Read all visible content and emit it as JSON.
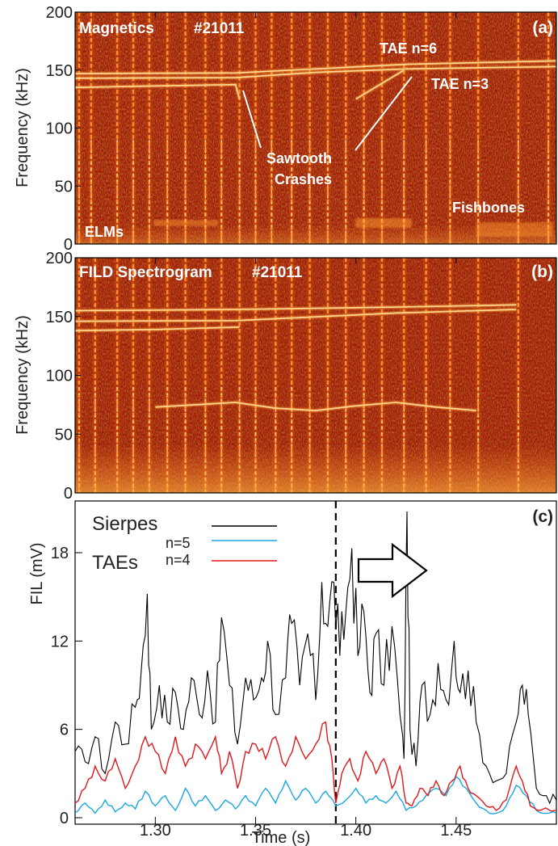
{
  "colors": {
    "spec_bg": "#a01a06",
    "spec_dark": "#6e0c02",
    "spec_mid": "#d2480f",
    "spec_bright": "#ff9b33",
    "spec_hot": "#ffe0a0",
    "sierpes": "#000000",
    "tae_n5": "#1aa7e0",
    "tae_n4": "#e0181c"
  },
  "chart_data": [
    {
      "type": "heatmap",
      "panel_label": "(a)",
      "title": "Magnetics",
      "shot": "#21011",
      "ylabel": "Frequency (kHz)",
      "ylim": [
        0,
        200
      ],
      "yticks": [
        0,
        50,
        100,
        150,
        200
      ],
      "xlim": [
        1.26,
        1.5
      ],
      "elm_times": [
        1.262,
        1.268,
        1.281,
        1.289,
        1.297,
        1.306,
        1.315,
        1.325,
        1.333,
        1.342,
        1.35,
        1.358,
        1.368,
        1.377,
        1.386,
        1.395,
        1.404,
        1.413,
        1.424,
        1.435,
        1.447,
        1.461,
        1.481,
        1.496
      ],
      "modes": [
        {
          "name": "TAE n=6",
          "points": [
            [
              1.26,
              147
            ],
            [
              1.34,
              147.5
            ],
            [
              1.38,
              151
            ],
            [
              1.425,
              155
            ],
            [
              1.5,
              158
            ]
          ]
        },
        {
          "name": "TAE n=3",
          "points": [
            [
              1.26,
              143
            ],
            [
              1.34,
              143.5
            ],
            [
              1.38,
              148
            ],
            [
              1.425,
              151
            ],
            [
              1.5,
              153
            ]
          ]
        },
        {
          "name": "",
          "points": [
            [
              1.26,
              135
            ],
            [
              1.29,
              136
            ],
            [
              1.34,
              137.5
            ],
            [
              1.342,
              125
            ]
          ]
        },
        {
          "name": "",
          "points": [
            [
              1.4,
              125
            ],
            [
              1.424,
              150
            ]
          ]
        }
      ],
      "annotations": [
        "ELMs",
        "Sawtooth",
        "Crashes",
        "TAE n=6",
        "TAE n=3",
        "Fishbones"
      ]
    },
    {
      "type": "heatmap",
      "panel_label": "(b)",
      "title": "FILD Spectrogram",
      "shot": "#21011",
      "ylabel": "Frequency (kHz)",
      "ylim": [
        0,
        200
      ],
      "yticks": [
        0,
        50,
        100,
        150,
        200
      ],
      "xlim": [
        1.26,
        1.5
      ],
      "elm_times": [
        1.262,
        1.27,
        1.281,
        1.289,
        1.297,
        1.306,
        1.315,
        1.325,
        1.333,
        1.342,
        1.35,
        1.36,
        1.368,
        1.377,
        1.386,
        1.395,
        1.404,
        1.413,
        1.424,
        1.435,
        1.447,
        1.461,
        1.481
      ],
      "modes": [
        {
          "name": "",
          "points": [
            [
              1.26,
              155
            ],
            [
              1.34,
              156
            ],
            [
              1.42,
              158
            ],
            [
              1.48,
              160
            ]
          ]
        },
        {
          "name": "",
          "points": [
            [
              1.26,
              146
            ],
            [
              1.34,
              146.5
            ],
            [
              1.42,
              153
            ],
            [
              1.48,
              156
            ]
          ]
        },
        {
          "name": "",
          "points": [
            [
              1.26,
              138
            ],
            [
              1.3,
              139
            ],
            [
              1.342,
              141
            ]
          ]
        },
        {
          "name": "",
          "points": [
            [
              1.3,
              73
            ],
            [
              1.34,
              77
            ],
            [
              1.36,
              72
            ],
            [
              1.38,
              70
            ],
            [
              1.4,
              74
            ],
            [
              1.42,
              77
            ],
            [
              1.44,
              73
            ],
            [
              1.46,
              70
            ]
          ]
        }
      ]
    },
    {
      "type": "line",
      "panel_label": "(c)",
      "xlabel": "Time (s)",
      "ylabel": "FIL (mV)",
      "xlim": [
        1.26,
        1.5
      ],
      "ylim": [
        0,
        24
      ],
      "xticks": [
        "1.30",
        "1.35",
        "1.40",
        "1.45"
      ],
      "xtick_values": [
        1.3,
        1.35,
        1.4,
        1.45
      ],
      "yticks": [
        "0",
        "6",
        "12",
        "18"
      ],
      "ytick_values": [
        0,
        6,
        12,
        18
      ],
      "vline_x": 1.39,
      "legend": {
        "sierpes": "Sierpes",
        "group": "TAEs",
        "n5": "n=5",
        "n4": "n=4"
      },
      "series": [
        {
          "name": "Sierpes",
          "color": "#000000",
          "anchors": [
            [
              1.26,
              4.5
            ],
            [
              1.265,
              3.8
            ],
            [
              1.27,
              5.5
            ],
            [
              1.275,
              3.0
            ],
            [
              1.28,
              6.5
            ],
            [
              1.285,
              5.0
            ],
            [
              1.29,
              7.5
            ],
            [
              1.293,
              10.0
            ],
            [
              1.296,
              15.2
            ],
            [
              1.298,
              6.0
            ],
            [
              1.302,
              9.0
            ],
            [
              1.306,
              6.5
            ],
            [
              1.31,
              8.5
            ],
            [
              1.314,
              6.0
            ],
            [
              1.318,
              9.5
            ],
            [
              1.322,
              7.0
            ],
            [
              1.326,
              10.0
            ],
            [
              1.33,
              6.5
            ],
            [
              1.333,
              13.6
            ],
            [
              1.337,
              9.0
            ],
            [
              1.341,
              5.0
            ],
            [
              1.345,
              9.5
            ],
            [
              1.349,
              8.0
            ],
            [
              1.353,
              9.5
            ],
            [
              1.356,
              12.0
            ],
            [
              1.36,
              7.0
            ],
            [
              1.365,
              9.5
            ],
            [
              1.368,
              13.2
            ],
            [
              1.372,
              9.0
            ],
            [
              1.376,
              12.5
            ],
            [
              1.38,
              8.0
            ],
            [
              1.383,
              16.0
            ],
            [
              1.386,
              13.0
            ],
            [
              1.389,
              16.0
            ],
            [
              1.392,
              11.0
            ],
            [
              1.395,
              14.0
            ],
            [
              1.398,
              18.3
            ],
            [
              1.401,
              11.0
            ],
            [
              1.404,
              14.0
            ],
            [
              1.407,
              8.5
            ],
            [
              1.41,
              12.5
            ],
            [
              1.414,
              9.0
            ],
            [
              1.418,
              13.0
            ],
            [
              1.422,
              7.0
            ],
            [
              1.424,
              4.0
            ],
            [
              1.4255,
              20.8
            ],
            [
              1.427,
              6.0
            ],
            [
              1.43,
              3.5
            ],
            [
              1.433,
              9.0
            ],
            [
              1.437,
              7.0
            ],
            [
              1.441,
              10.5
            ],
            [
              1.445,
              8.0
            ],
            [
              1.449,
              12.0
            ],
            [
              1.452,
              8.5
            ],
            [
              1.456,
              10.0
            ],
            [
              1.46,
              6.5
            ],
            [
              1.465,
              3.5
            ],
            [
              1.47,
              2.5
            ],
            [
              1.475,
              3.0
            ],
            [
              1.48,
              6.5
            ],
            [
              1.483,
              9.0
            ],
            [
              1.486,
              7.0
            ],
            [
              1.49,
              2.0
            ],
            [
              1.495,
              1.5
            ],
            [
              1.5,
              1.2
            ]
          ]
        },
        {
          "name": "n=4",
          "color": "#e0181c",
          "anchors": [
            [
              1.26,
              1.0
            ],
            [
              1.265,
              2.0
            ],
            [
              1.27,
              3.5
            ],
            [
              1.275,
              2.5
            ],
            [
              1.28,
              4.0
            ],
            [
              1.285,
              2.0
            ],
            [
              1.29,
              3.5
            ],
            [
              1.295,
              5.5
            ],
            [
              1.3,
              4.5
            ],
            [
              1.305,
              3.0
            ],
            [
              1.31,
              5.5
            ],
            [
              1.315,
              3.5
            ],
            [
              1.32,
              5.0
            ],
            [
              1.325,
              4.0
            ],
            [
              1.33,
              5.5
            ],
            [
              1.333,
              3.0
            ],
            [
              1.337,
              4.5
            ],
            [
              1.341,
              2.0
            ],
            [
              1.345,
              4.5
            ],
            [
              1.35,
              5.0
            ],
            [
              1.355,
              4.0
            ],
            [
              1.36,
              5.5
            ],
            [
              1.365,
              3.5
            ],
            [
              1.37,
              5.5
            ],
            [
              1.375,
              4.0
            ],
            [
              1.38,
              5.0
            ],
            [
              1.385,
              6.5
            ],
            [
              1.388,
              4.0
            ],
            [
              1.39,
              1.0
            ],
            [
              1.393,
              3.0
            ],
            [
              1.397,
              4.0
            ],
            [
              1.401,
              2.5
            ],
            [
              1.405,
              4.5
            ],
            [
              1.41,
              3.0
            ],
            [
              1.414,
              4.0
            ],
            [
              1.418,
              2.0
            ],
            [
              1.422,
              3.5
            ],
            [
              1.425,
              1.0
            ],
            [
              1.428,
              0.8
            ],
            [
              1.432,
              2.0
            ],
            [
              1.436,
              1.5
            ],
            [
              1.44,
              2.5
            ],
            [
              1.444,
              1.5
            ],
            [
              1.448,
              2.5
            ],
            [
              1.452,
              3.5
            ],
            [
              1.456,
              2.0
            ],
            [
              1.46,
              1.5
            ],
            [
              1.465,
              0.8
            ],
            [
              1.47,
              0.5
            ],
            [
              1.475,
              1.2
            ],
            [
              1.48,
              3.5
            ],
            [
              1.483,
              2.5
            ],
            [
              1.487,
              0.8
            ],
            [
              1.492,
              0.5
            ],
            [
              1.5,
              0.5
            ]
          ]
        },
        {
          "name": "n=5",
          "color": "#1aa7e0",
          "anchors": [
            [
              1.26,
              0.3
            ],
            [
              1.265,
              1.0
            ],
            [
              1.27,
              0.3
            ],
            [
              1.275,
              1.2
            ],
            [
              1.28,
              0.4
            ],
            [
              1.285,
              1.0
            ],
            [
              1.29,
              0.6
            ],
            [
              1.295,
              1.8
            ],
            [
              1.3,
              0.8
            ],
            [
              1.305,
              1.5
            ],
            [
              1.31,
              0.5
            ],
            [
              1.315,
              2.0
            ],
            [
              1.32,
              0.8
            ],
            [
              1.325,
              1.5
            ],
            [
              1.33,
              0.5
            ],
            [
              1.335,
              1.2
            ],
            [
              1.34,
              0.6
            ],
            [
              1.345,
              1.5
            ],
            [
              1.35,
              0.8
            ],
            [
              1.355,
              2.0
            ],
            [
              1.36,
              1.0
            ],
            [
              1.365,
              2.5
            ],
            [
              1.37,
              1.2
            ],
            [
              1.375,
              2.0
            ],
            [
              1.38,
              1.0
            ],
            [
              1.385,
              1.8
            ],
            [
              1.39,
              0.8
            ],
            [
              1.395,
              1.2
            ],
            [
              1.4,
              2.0
            ],
            [
              1.405,
              1.0
            ],
            [
              1.41,
              1.5
            ],
            [
              1.415,
              1.0
            ],
            [
              1.42,
              1.8
            ],
            [
              1.425,
              0.5
            ],
            [
              1.43,
              0.8
            ],
            [
              1.435,
              1.5
            ],
            [
              1.44,
              2.0
            ],
            [
              1.445,
              1.5
            ],
            [
              1.45,
              2.8
            ],
            [
              1.455,
              2.0
            ],
            [
              1.46,
              1.0
            ],
            [
              1.465,
              0.5
            ],
            [
              1.47,
              0.3
            ],
            [
              1.475,
              0.8
            ],
            [
              1.48,
              2.2
            ],
            [
              1.485,
              1.5
            ],
            [
              1.49,
              0.5
            ],
            [
              1.495,
              0.3
            ],
            [
              1.5,
              0.3
            ]
          ]
        }
      ]
    }
  ]
}
